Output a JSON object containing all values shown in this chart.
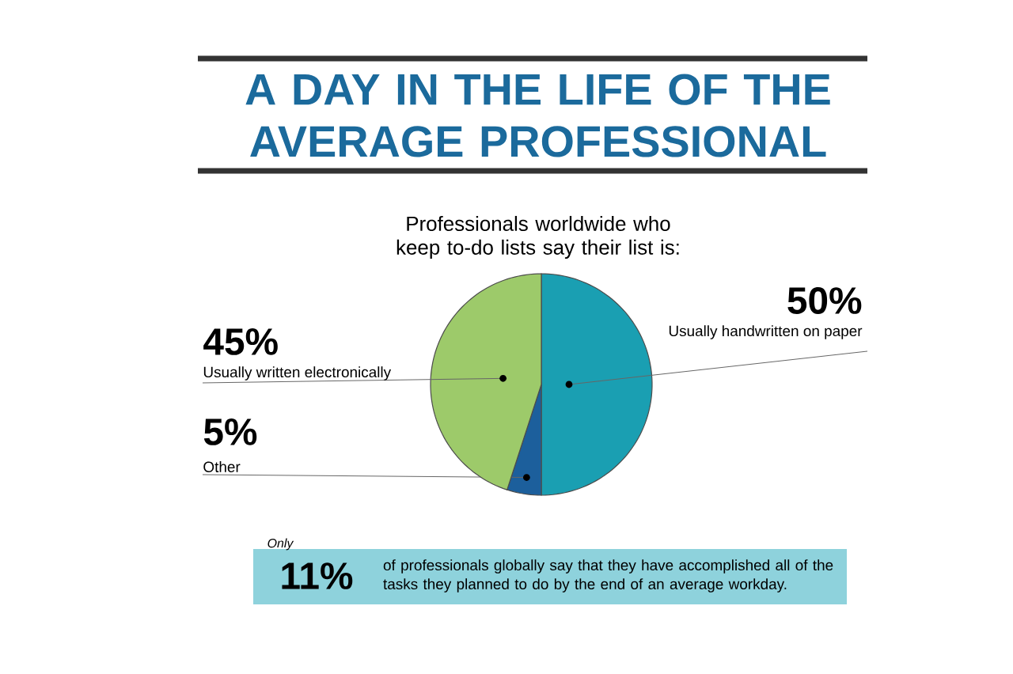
{
  "chart_data": {
    "type": "pie",
    "title": "A DAY IN THE LIFE OF THE AVERAGE PROFESSIONAL",
    "subtitle": "Professionals worldwide who keep to-do lists say their list is:",
    "categories": [
      "Usually handwritten on paper",
      "Other",
      "Usually written electronically"
    ],
    "values": [
      50,
      5,
      45
    ],
    "colors": [
      "#1a9fb2",
      "#1c5f9c",
      "#9dca6a"
    ],
    "value_labels": [
      "50%",
      "5%",
      "45%"
    ],
    "annotations": [
      "Only",
      "11%",
      "of professionals globally say that they have accomplished all of the tasks they planned to do by the end of an average workday."
    ]
  }
}
